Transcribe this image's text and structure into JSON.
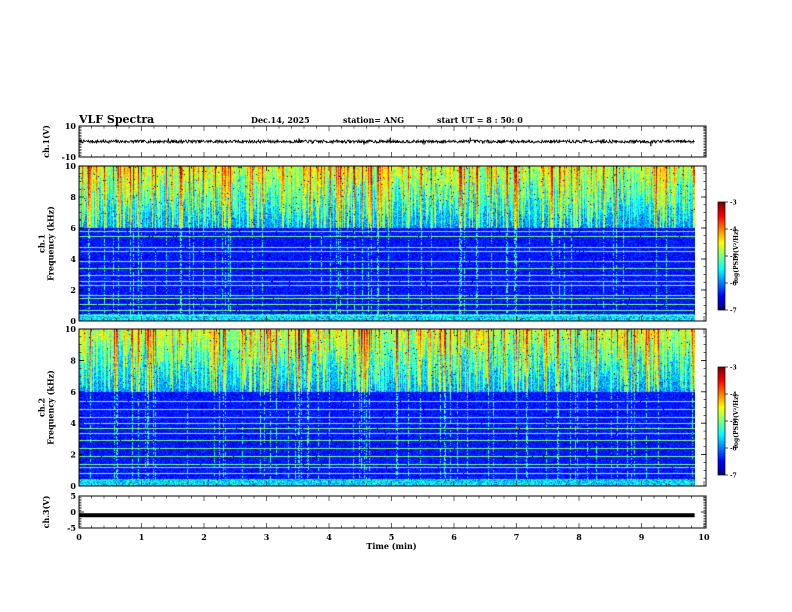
{
  "header": {
    "title": "VLF Spectra",
    "date": "Dec.14, 2025",
    "station": "station= ANG",
    "start_ut": "start UT =  8 : 50: 0"
  },
  "colors": {
    "waveform": "#000000",
    "background": "#ffffff"
  },
  "chart_data": [
    {
      "type": "line",
      "id": "ch1-waveform",
      "ylabel": "ch.1(V)",
      "ylim": [
        -10,
        10
      ],
      "yticks": [
        "10",
        "-10"
      ],
      "baseline": 0,
      "noise_amplitude": 1,
      "spikes": [
        {
          "t": 1.43,
          "v": 2
        },
        {
          "t": 3.52,
          "v": 2
        },
        {
          "t": 3.73,
          "v": -1.5
        },
        {
          "t": 4.56,
          "v": -2
        },
        {
          "t": 4.98,
          "v": 2.5
        },
        {
          "t": 5.52,
          "v": -2
        },
        {
          "t": 6.26,
          "v": 2.5
        },
        {
          "t": 8.1,
          "v": 1.5
        },
        {
          "t": 8.4,
          "v": 1.5
        },
        {
          "t": 9.15,
          "v": -3
        }
      ],
      "xlim": [
        0,
        9.85
      ]
    },
    {
      "type": "heatmap",
      "id": "ch1-spectrogram",
      "ylabel": "ch.1\nFrequency (kHz)",
      "ylim": [
        0,
        10
      ],
      "yticks": [
        "0",
        "2",
        "4",
        "6",
        "8",
        "10"
      ],
      "xlim": [
        0,
        9.85
      ],
      "colorbar": {
        "label": "log(PSD)(V²/Hz)",
        "range": [
          -7,
          -3
        ],
        "ticks": [
          "-3",
          "-4",
          "-5",
          "-6",
          "-7"
        ]
      },
      "steady_lines_khz": [
        0.4,
        0.7,
        1.1,
        1.5,
        1.7,
        2.3,
        2.6,
        3.0,
        3.4,
        3.9,
        4.5,
        4.8,
        5.5,
        5.8
      ],
      "seed": 11
    },
    {
      "type": "heatmap",
      "id": "ch2-spectrogram",
      "ylabel": "ch.2\nFrequency (kHz)",
      "ylim": [
        0,
        10
      ],
      "yticks": [
        "0",
        "2",
        "4",
        "6",
        "8",
        "10"
      ],
      "xlim": [
        0,
        9.85
      ],
      "colorbar": {
        "label": "log(PSD)(V²/Hz)",
        "range": [
          -7,
          -3
        ],
        "ticks": [
          "-3",
          "-4",
          "-5",
          "-6",
          "-7"
        ]
      },
      "steady_lines_khz": [
        0.8,
        1.2,
        1.4,
        1.9,
        2.4,
        2.9,
        3.4,
        3.7,
        4.0,
        4.4,
        4.9,
        5.4
      ],
      "seed": 29
    },
    {
      "type": "line",
      "id": "ch3-waveform",
      "ylabel": "ch.3(V)",
      "ylim": [
        -5,
        5
      ],
      "yticks": [
        "5",
        "0",
        "-5"
      ],
      "baseline": -1,
      "noise_amplitude": 0,
      "thick": true,
      "xlim": [
        0,
        9.85
      ]
    }
  ],
  "x_axis": {
    "label": "Time (min)",
    "xlim": [
      0,
      10
    ],
    "ticks": [
      "0",
      "1",
      "2",
      "3",
      "4",
      "5",
      "6",
      "7",
      "8",
      "9",
      "10"
    ]
  }
}
